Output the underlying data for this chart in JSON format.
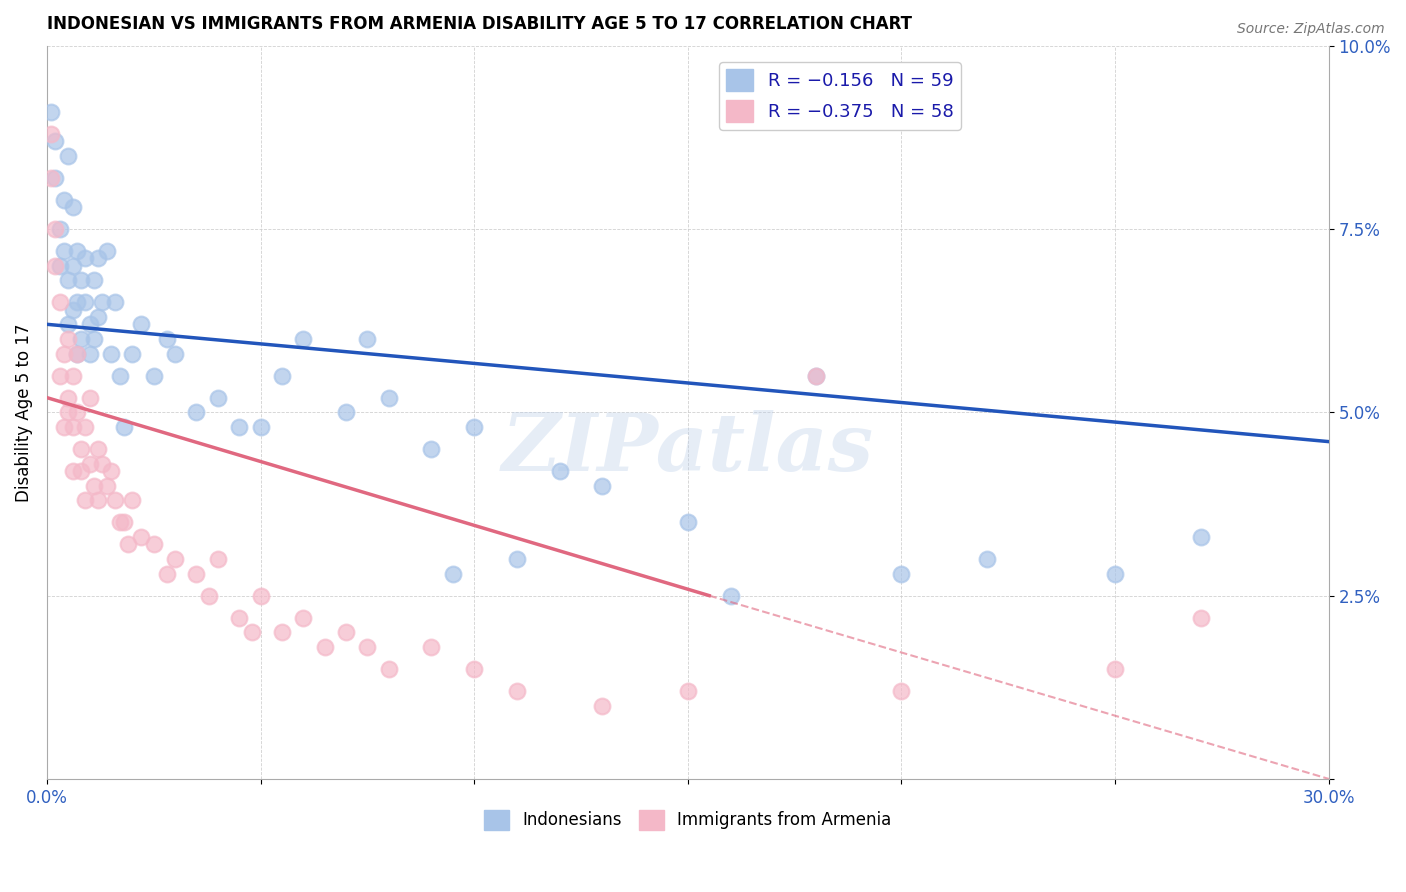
{
  "title": "INDONESIAN VS IMMIGRANTS FROM ARMENIA DISABILITY AGE 5 TO 17 CORRELATION CHART",
  "source": "Source: ZipAtlas.com",
  "ylabel": "Disability Age 5 to 17",
  "xlim": [
    0.0,
    0.3
  ],
  "ylim": [
    0.0,
    0.1
  ],
  "xticks": [
    0.0,
    0.05,
    0.1,
    0.15,
    0.2,
    0.25,
    0.3
  ],
  "xticklabels": [
    "0.0%",
    "",
    "",
    "",
    "",
    "",
    "30.0%"
  ],
  "yticks": [
    0.0,
    0.025,
    0.05,
    0.075,
    0.1
  ],
  "yticklabels": [
    "",
    "2.5%",
    "5.0%",
    "7.5%",
    "10.0%"
  ],
  "color_indonesian": "#a8c4e8",
  "color_armenian": "#f4b8c8",
  "color_line_indonesian": "#2255bb",
  "color_line_armenian": "#e06880",
  "watermark": "ZIPatlas",
  "indonesian_x": [
    0.001,
    0.002,
    0.002,
    0.003,
    0.003,
    0.004,
    0.004,
    0.005,
    0.005,
    0.005,
    0.006,
    0.006,
    0.006,
    0.007,
    0.007,
    0.007,
    0.008,
    0.008,
    0.009,
    0.009,
    0.01,
    0.01,
    0.011,
    0.011,
    0.012,
    0.012,
    0.013,
    0.014,
    0.015,
    0.016,
    0.017,
    0.018,
    0.02,
    0.022,
    0.025,
    0.028,
    0.03,
    0.035,
    0.04,
    0.045,
    0.05,
    0.055,
    0.06,
    0.07,
    0.08,
    0.09,
    0.1,
    0.12,
    0.15,
    0.18,
    0.2,
    0.22,
    0.25,
    0.27,
    0.13,
    0.16,
    0.11,
    0.095,
    0.075
  ],
  "indonesian_y": [
    0.091,
    0.087,
    0.082,
    0.075,
    0.07,
    0.072,
    0.079,
    0.085,
    0.068,
    0.062,
    0.078,
    0.07,
    0.064,
    0.072,
    0.065,
    0.058,
    0.068,
    0.06,
    0.065,
    0.071,
    0.062,
    0.058,
    0.068,
    0.06,
    0.063,
    0.071,
    0.065,
    0.072,
    0.058,
    0.065,
    0.055,
    0.048,
    0.058,
    0.062,
    0.055,
    0.06,
    0.058,
    0.05,
    0.052,
    0.048,
    0.048,
    0.055,
    0.06,
    0.05,
    0.052,
    0.045,
    0.048,
    0.042,
    0.035,
    0.055,
    0.028,
    0.03,
    0.028,
    0.033,
    0.04,
    0.025,
    0.03,
    0.028,
    0.06
  ],
  "armenian_x": [
    0.001,
    0.001,
    0.002,
    0.002,
    0.003,
    0.003,
    0.004,
    0.004,
    0.005,
    0.005,
    0.005,
    0.006,
    0.006,
    0.006,
    0.007,
    0.007,
    0.008,
    0.008,
    0.009,
    0.009,
    0.01,
    0.01,
    0.011,
    0.012,
    0.012,
    0.013,
    0.014,
    0.015,
    0.016,
    0.017,
    0.018,
    0.019,
    0.02,
    0.022,
    0.025,
    0.028,
    0.03,
    0.035,
    0.038,
    0.04,
    0.045,
    0.048,
    0.05,
    0.055,
    0.06,
    0.065,
    0.07,
    0.075,
    0.08,
    0.09,
    0.1,
    0.11,
    0.13,
    0.15,
    0.2,
    0.25,
    0.27,
    0.18
  ],
  "armenian_y": [
    0.088,
    0.082,
    0.075,
    0.07,
    0.065,
    0.055,
    0.058,
    0.048,
    0.052,
    0.06,
    0.05,
    0.055,
    0.048,
    0.042,
    0.05,
    0.058,
    0.045,
    0.042,
    0.048,
    0.038,
    0.043,
    0.052,
    0.04,
    0.045,
    0.038,
    0.043,
    0.04,
    0.042,
    0.038,
    0.035,
    0.035,
    0.032,
    0.038,
    0.033,
    0.032,
    0.028,
    0.03,
    0.028,
    0.025,
    0.03,
    0.022,
    0.02,
    0.025,
    0.02,
    0.022,
    0.018,
    0.02,
    0.018,
    0.015,
    0.018,
    0.015,
    0.012,
    0.01,
    0.012,
    0.012,
    0.015,
    0.022,
    0.055
  ],
  "line_indo_x0": 0.0,
  "line_indo_y0": 0.062,
  "line_indo_x1": 0.3,
  "line_indo_y1": 0.046,
  "line_arm_x0": 0.0,
  "line_arm_y0": 0.052,
  "line_arm_x1": 0.155,
  "line_arm_y1": 0.025,
  "line_arm_dash_x0": 0.155,
  "line_arm_dash_y0": 0.025,
  "line_arm_dash_x1": 0.3,
  "line_arm_dash_y1": 0.0
}
